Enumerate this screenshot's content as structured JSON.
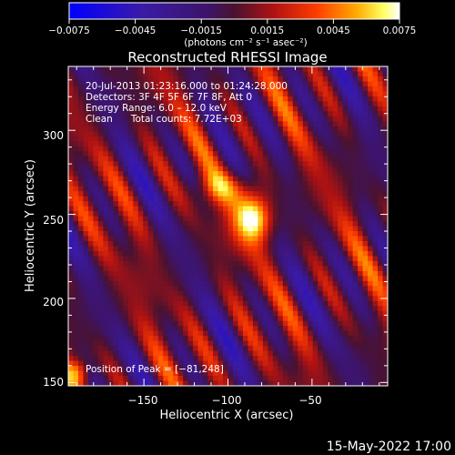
{
  "chart_data": {
    "type": "heatmap",
    "title": "Reconstructed RHESSI Image",
    "xlabel": "Heliocentric X (arcsec)",
    "ylabel": "Heliocentric Y (arcsec)",
    "xlim": [
      -195,
      -5
    ],
    "ylim": [
      148,
      338
    ],
    "x_ticks": [
      -150,
      -100,
      -50
    ],
    "x_tick_labels": [
      "−150",
      "−100",
      "−50"
    ],
    "y_ticks": [
      150,
      200,
      250,
      300
    ],
    "y_tick_labels": [
      "150",
      "200",
      "250",
      "300"
    ],
    "colorbar": {
      "range": [
        -0.0075,
        0.0075
      ],
      "ticks": [
        -0.0075,
        -0.0045,
        -0.0015,
        0.0015,
        0.0045,
        0.0075
      ],
      "tick_labels": [
        "−0.0075",
        "−0.0045",
        "−0.0015",
        "0.0015",
        "0.0045",
        "0.0075"
      ],
      "unit_label": "(photons cm⁻² s⁻¹ asec⁻²)"
    },
    "annotations": [
      "20‑Jul‑2013 01:23:16.000 to 01:24:28.000",
      "Detectors: 3F 4F 5F 6F 7F 8F, Att 0",
      "Energy Range: 6.0 – 12.0 keV",
      "Clean      Total counts: 7.72E+03"
    ],
    "peak_label": "Position of Peak = [−81,248]",
    "peak": [
      -81,
      248
    ],
    "source": {
      "x": -85,
      "y": 248,
      "peak_value": 0.0075
    },
    "texture": {
      "stripe_angle_deg": 28,
      "amplitude": 0.0038
    }
  },
  "footer": {
    "date": "15‑May‑2022 17:00"
  }
}
